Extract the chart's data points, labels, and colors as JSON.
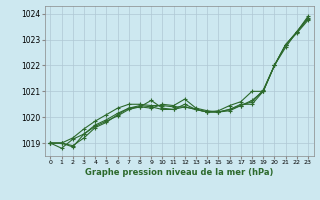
{
  "title": "Graphe pression niveau de la mer (hPa)",
  "bg_color": "#cde8f0",
  "grid_color": "#b0c8d4",
  "line_color": "#2d6a2d",
  "xlim": [
    -0.5,
    23.5
  ],
  "ylim": [
    1018.5,
    1024.3
  ],
  "xtick_labels": [
    "0",
    "1",
    "2",
    "3",
    "4",
    "5",
    "6",
    "7",
    "8",
    "9",
    "10",
    "11",
    "12",
    "13",
    "14",
    "15",
    "16",
    "17",
    "18",
    "19",
    "20",
    "21",
    "22",
    "23"
  ],
  "yticks": [
    1019,
    1020,
    1021,
    1022,
    1023,
    1024
  ],
  "series": [
    [
      1019.0,
      1019.0,
      1018.9,
      1019.2,
      1019.6,
      1019.8,
      1020.1,
      1020.35,
      1020.4,
      1020.35,
      1020.5,
      1020.45,
      1020.7,
      1020.35,
      1020.25,
      1020.2,
      1020.3,
      1020.5,
      1020.5,
      1021.0,
      1022.0,
      1022.7,
      1023.3,
      1023.85
    ],
    [
      1019.0,
      1019.0,
      1018.85,
      1019.35,
      1019.7,
      1019.9,
      1020.15,
      1020.35,
      1020.45,
      1020.4,
      1020.3,
      1020.3,
      1020.4,
      1020.3,
      1020.2,
      1020.2,
      1020.25,
      1020.45,
      1020.65,
      1021.0,
      1022.0,
      1022.8,
      1023.25,
      1023.75
    ],
    [
      1019.0,
      1018.8,
      1019.15,
      1019.35,
      1019.65,
      1019.85,
      1020.05,
      1020.3,
      1020.4,
      1020.65,
      1020.35,
      1020.3,
      1020.5,
      1020.3,
      1020.2,
      1020.2,
      1020.3,
      1020.45,
      1020.6,
      1021.05,
      1022.0,
      1022.8,
      1023.3,
      1023.9
    ],
    [
      1019.0,
      1019.0,
      1019.2,
      1019.55,
      1019.85,
      1020.1,
      1020.35,
      1020.5,
      1020.5,
      1020.45,
      1020.45,
      1020.4,
      1020.4,
      1020.3,
      1020.2,
      1020.25,
      1020.45,
      1020.6,
      1021.0,
      1021.0,
      1022.0,
      1022.8,
      1023.3,
      1023.8
    ]
  ]
}
